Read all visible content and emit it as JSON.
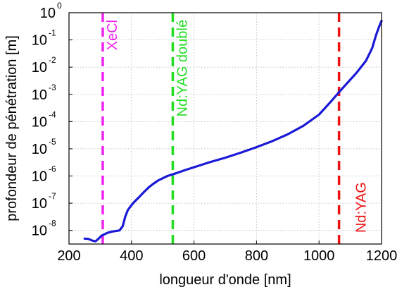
{
  "chart_data": {
    "type": "line",
    "xlabel": "longueur d'onde [nm]",
    "ylabel": "profondeur de pénétration [m]",
    "xlim": [
      200,
      1200
    ],
    "ylim_log10": [
      -8.5,
      0
    ],
    "y_scale": "log",
    "grid": true,
    "x_ticks": [
      200,
      400,
      600,
      800,
      1000,
      1200
    ],
    "x_tick_labels": [
      "200",
      "400",
      "600",
      "800",
      "1000",
      "1200"
    ],
    "y_ticks": [
      {
        "base": "10",
        "exp": "0",
        "value": 1
      },
      {
        "base": "10",
        "exp": "-1",
        "value": 0.1
      },
      {
        "base": "10",
        "exp": "-2",
        "value": 0.01
      },
      {
        "base": "10",
        "exp": "-3",
        "value": 0.001
      },
      {
        "base": "10",
        "exp": "-4",
        "value": 0.0001
      },
      {
        "base": "10",
        "exp": "-5",
        "value": 1e-05
      },
      {
        "base": "10",
        "exp": "-6",
        "value": 1e-06
      },
      {
        "base": "10",
        "exp": "-7",
        "value": 1e-07
      },
      {
        "base": "10",
        "exp": "-8",
        "value": 1e-08
      }
    ],
    "series": [
      {
        "color": "#1a1ad6",
        "points": [
          [
            250,
            5e-09
          ],
          [
            262,
            4.9e-09
          ],
          [
            275,
            4.2e-09
          ],
          [
            285,
            4e-09
          ],
          [
            295,
            5e-09
          ],
          [
            305,
            6.5e-09
          ],
          [
            315,
            7.4e-09
          ],
          [
            325,
            8.3e-09
          ],
          [
            338,
            9.1e-09
          ],
          [
            352,
            9.6e-09
          ],
          [
            362,
            1e-08
          ],
          [
            372,
            1.45e-08
          ],
          [
            380,
            3.2e-08
          ],
          [
            388,
            5.5e-08
          ],
          [
            398,
            8e-08
          ],
          [
            410,
            1.15e-07
          ],
          [
            425,
            1.7e-07
          ],
          [
            440,
            2.6e-07
          ],
          [
            455,
            3.8e-07
          ],
          [
            470,
            5.2e-07
          ],
          [
            485,
            6.8e-07
          ],
          [
            500,
            8.3e-07
          ],
          [
            515,
            1e-06
          ],
          [
            532,
            1.15e-06
          ],
          [
            550,
            1.35e-06
          ],
          [
            575,
            1.7e-06
          ],
          [
            600,
            2.1e-06
          ],
          [
            650,
            3.2e-06
          ],
          [
            700,
            4.7e-06
          ],
          [
            750,
            7.2e-06
          ],
          [
            800,
            1.15e-05
          ],
          [
            850,
            1.9e-05
          ],
          [
            900,
            3.4e-05
          ],
          [
            950,
            7e-05
          ],
          [
            1000,
            0.00018
          ],
          [
            1040,
            0.00058
          ],
          [
            1064,
            0.0012
          ],
          [
            1090,
            0.0026
          ],
          [
            1120,
            0.0062
          ],
          [
            1150,
            0.017
          ],
          [
            1170,
            0.05
          ],
          [
            1182,
            0.145
          ],
          [
            1192,
            0.3
          ],
          [
            1200,
            0.5
          ]
        ]
      }
    ],
    "annotations": [
      {
        "label": "XeCl",
        "x": 308,
        "color": "#ee22ee",
        "label_position": "top"
      },
      {
        "label": "Nd:YAG doublé",
        "x": 532,
        "color": "#22dd22",
        "label_position": "top"
      },
      {
        "label": "Nd:YAG",
        "x": 1064,
        "color": "#ee1111",
        "label_position": "bottom"
      }
    ]
  }
}
